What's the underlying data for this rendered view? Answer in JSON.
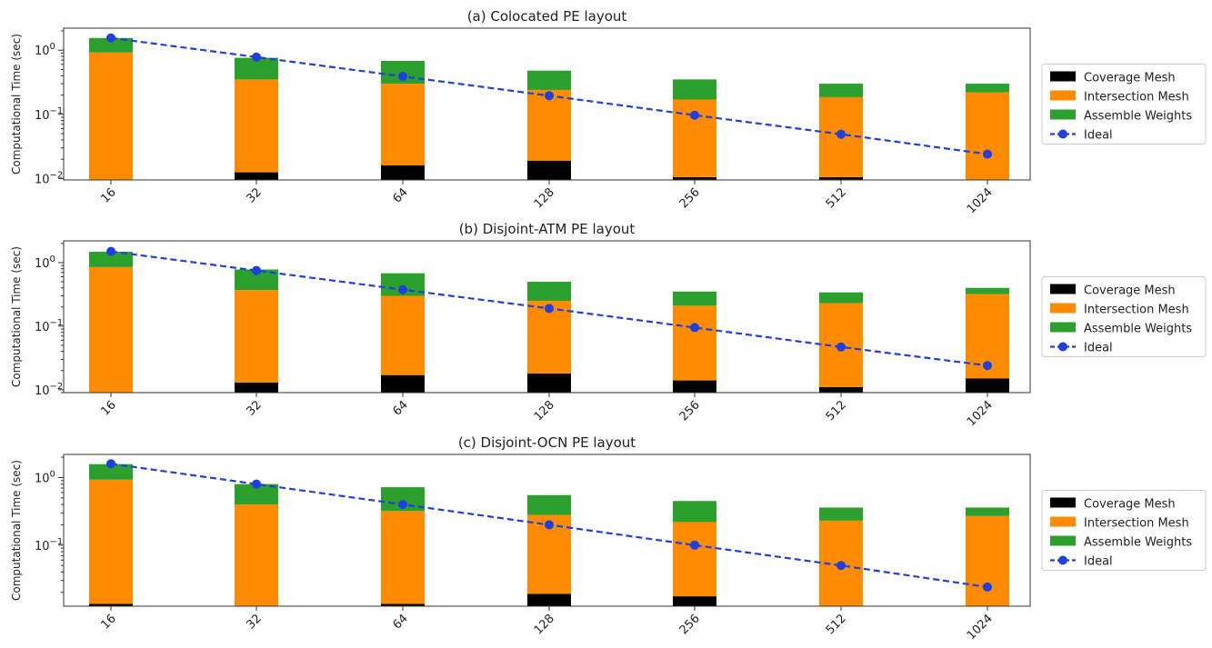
{
  "colors": {
    "coverage": "#000000",
    "intersection": "#ff8c00",
    "assemble": "#2ca02c",
    "ideal": "#1f3fe0"
  },
  "chart_data": [
    {
      "type": "bar",
      "stacked": true,
      "log_y": true,
      "title": "(a) Colocated PE layout",
      "ylabel": "Computational Time (sec)",
      "categories": [
        "16",
        "32",
        "64",
        "128",
        "256",
        "512",
        "1024"
      ],
      "ylim": [
        0.0095,
        2.2
      ],
      "yticks": [
        {
          "v": 0.01,
          "e": "-2"
        },
        {
          "v": 0.1,
          "e": "-1"
        },
        {
          "v": 1,
          "e": "0"
        }
      ],
      "series": [
        {
          "name": "Coverage Mesh",
          "values": [
            0.0095,
            0.0125,
            0.016,
            0.019,
            0.0105,
            0.0105,
            0.0095
          ]
        },
        {
          "name": "Intersection Mesh",
          "values": [
            0.92,
            0.35,
            0.3,
            0.24,
            0.17,
            0.185,
            0.22
          ]
        },
        {
          "name": "Assemble Weights",
          "values": [
            1.55,
            0.76,
            0.68,
            0.48,
            0.35,
            0.3,
            0.3
          ]
        }
      ],
      "ideal": [
        1.55,
        0.78,
        0.39,
        0.195,
        0.097,
        0.049,
        0.024
      ],
      "legend": [
        "Coverage Mesh",
        "Intersection Mesh",
        "Assemble Weights",
        "Ideal"
      ]
    },
    {
      "type": "bar",
      "stacked": true,
      "log_y": true,
      "title": "(b) Disjoint-ATM PE layout",
      "ylabel": "Computational Time (sec)",
      "categories": [
        "16",
        "32",
        "64",
        "128",
        "256",
        "512",
        "1024"
      ],
      "ylim": [
        0.009,
        2.2
      ],
      "yticks": [
        {
          "v": 0.01,
          "e": "-2"
        },
        {
          "v": 0.1,
          "e": "-1"
        },
        {
          "v": 1,
          "e": "0"
        }
      ],
      "series": [
        {
          "name": "Coverage Mesh",
          "values": [
            0.009,
            0.013,
            0.017,
            0.018,
            0.014,
            0.011,
            0.015
          ]
        },
        {
          "name": "Intersection Mesh",
          "values": [
            0.85,
            0.37,
            0.3,
            0.25,
            0.21,
            0.23,
            0.32
          ]
        },
        {
          "name": "Assemble Weights",
          "values": [
            1.48,
            0.78,
            0.68,
            0.5,
            0.35,
            0.34,
            0.4
          ]
        }
      ],
      "ideal": [
        1.5,
        0.75,
        0.375,
        0.19,
        0.095,
        0.047,
        0.024
      ],
      "legend": [
        "Coverage Mesh",
        "Intersection Mesh",
        "Assemble Weights",
        "Ideal"
      ]
    },
    {
      "type": "bar",
      "stacked": true,
      "log_y": true,
      "title": "(c) Disjoint-OCN PE layout",
      "ylabel": "Computational Time (sec)",
      "categories": [
        "16",
        "32",
        "64",
        "128",
        "256",
        "512",
        "1024"
      ],
      "ylim": [
        0.0125,
        2.2
      ],
      "yticks": [
        {
          "v": 0.1,
          "e": "-1"
        },
        {
          "v": 1,
          "e": "0"
        }
      ],
      "series": [
        {
          "name": "Coverage Mesh",
          "values": [
            0.0135,
            0.0125,
            0.0135,
            0.019,
            0.0175,
            0.0125,
            0.0125
          ]
        },
        {
          "name": "Intersection Mesh",
          "values": [
            0.93,
            0.4,
            0.32,
            0.28,
            0.22,
            0.23,
            0.27
          ]
        },
        {
          "name": "Assemble Weights",
          "values": [
            1.58,
            0.8,
            0.72,
            0.55,
            0.45,
            0.36,
            0.36
          ]
        }
      ],
      "ideal": [
        1.6,
        0.8,
        0.4,
        0.2,
        0.1,
        0.05,
        0.024
      ],
      "legend": [
        "Coverage Mesh",
        "Intersection Mesh",
        "Assemble Weights",
        "Ideal"
      ]
    }
  ]
}
